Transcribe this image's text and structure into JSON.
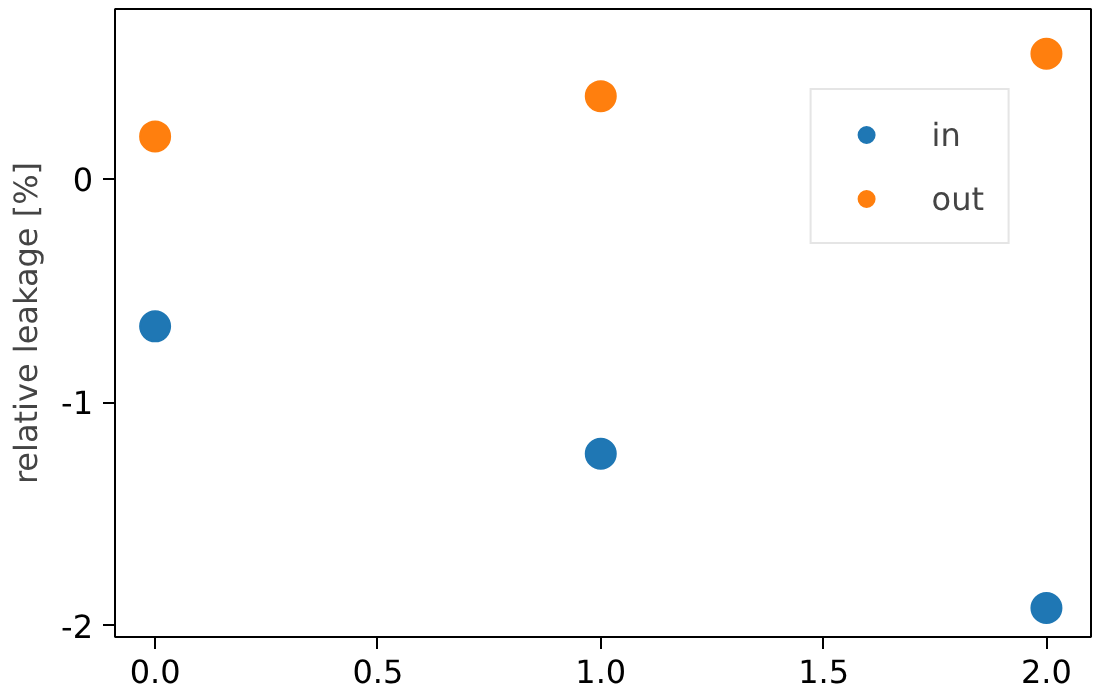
{
  "chart_data": {
    "type": "scatter",
    "ylabel": "relative leakage [%]",
    "x": [
      0,
      1,
      2
    ],
    "series": [
      {
        "name": "in",
        "color": "#1f77b4",
        "values": [
          -0.66,
          -1.23,
          -1.92
        ]
      },
      {
        "name": "out",
        "color": "#ff7f0e",
        "values": [
          0.19,
          0.37,
          0.56
        ]
      }
    ],
    "xlim": [
      -0.09,
      2.1
    ],
    "ylim": [
      -2.05,
      0.76
    ],
    "xticks": [
      {
        "value": 0,
        "label": "0.0"
      },
      {
        "value": 0.5,
        "label": "0.5"
      },
      {
        "value": 1,
        "label": "1.0"
      },
      {
        "value": 1.5,
        "label": "1.5"
      },
      {
        "value": 2,
        "label": "2.0"
      }
    ],
    "yticks": [
      -2,
      -1,
      0
    ],
    "legend": "top right",
    "marker": "circle",
    "grid": false
  }
}
